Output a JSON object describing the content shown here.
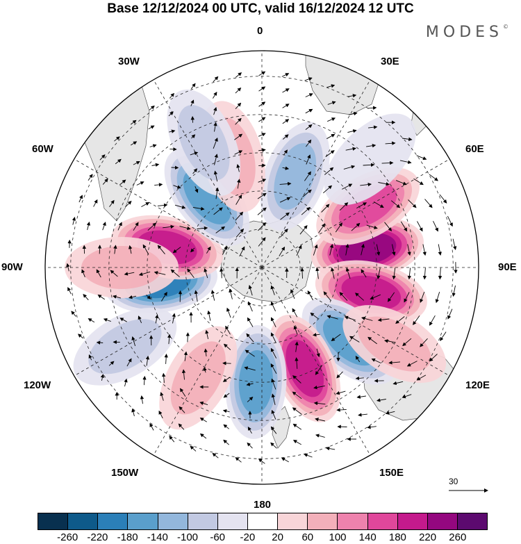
{
  "title": "Base 12/12/2024 00 UTC, valid 16/12/2024 12 UTC",
  "brand": "MODES",
  "brand_mark": "©",
  "longitude_labels": {
    "lon_0": "0",
    "lon_30e": "30E",
    "lon_60e": "60E",
    "lon_90e": "90E",
    "lon_120e": "120E",
    "lon_150e": "150E",
    "lon_180": "180",
    "lon_150w": "150W",
    "lon_120w": "120W",
    "lon_90w": "90W",
    "lon_60w": "60W",
    "lon_30w": "30W"
  },
  "reference_vector": {
    "value": "30"
  },
  "colorbar": {
    "ticks": [
      "-260",
      "-220",
      "-180",
      "-140",
      "-100",
      "-60",
      "-20",
      "20",
      "60",
      "100",
      "140",
      "180",
      "220",
      "260"
    ],
    "colors": [
      "#08304f",
      "#0e5a8a",
      "#2b7fb8",
      "#5a9fcc",
      "#93b7dc",
      "#c2c9e2",
      "#e4e3f0",
      "#ffffff",
      "#f8d5d8",
      "#f3b0ba",
      "#ee82ad",
      "#e0479b",
      "#c41a8c",
      "#94077f",
      "#5c0a6f"
    ]
  },
  "anomalies": [
    {
      "lon": 20,
      "lat": -52,
      "value": -120
    },
    {
      "lon": 80,
      "lat": -48,
      "value": 230
    },
    {
      "lon": 60,
      "lat": -42,
      "value": 140
    },
    {
      "lon": 103,
      "lat": -46,
      "value": 200
    },
    {
      "lon": 130,
      "lat": -45,
      "value": -160
    },
    {
      "lon": 157,
      "lat": -47,
      "value": 200
    },
    {
      "lon": 183,
      "lat": -45,
      "value": -170
    },
    {
      "lon": 262,
      "lat": -50,
      "value": -200
    },
    {
      "lon": 282,
      "lat": -52,
      "value": 200
    },
    {
      "lon": 322,
      "lat": -55,
      "value": -140
    },
    {
      "lon": 345,
      "lat": -45,
      "value": 90
    },
    {
      "lon": 335,
      "lat": -36,
      "value": -80
    },
    {
      "lon": 210,
      "lat": -40,
      "value": 70
    },
    {
      "lon": 240,
      "lat": -28,
      "value": -70
    },
    {
      "lon": 270,
      "lat": -35,
      "value": 60
    },
    {
      "lon": 45,
      "lat": -30,
      "value": -50
    },
    {
      "lon": 120,
      "lat": -30,
      "value": 60
    }
  ]
}
